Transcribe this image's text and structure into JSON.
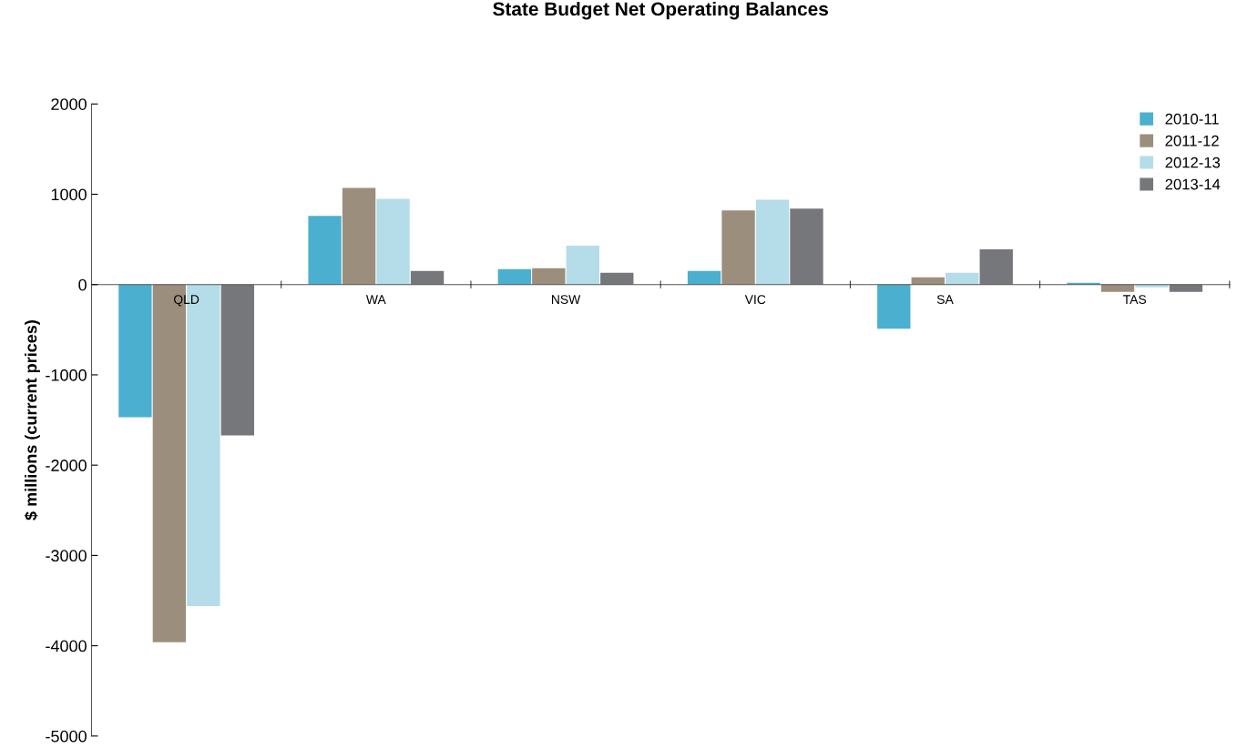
{
  "chart_data": {
    "type": "bar",
    "title": "State Budget Net Operating Balances",
    "ylabel": "$ millions (current prices)",
    "categories": [
      "QLD",
      "WA",
      "NSW",
      "VIC",
      "SA",
      "TAS"
    ],
    "series": [
      {
        "name": "2010-11",
        "color": "#4bafcf",
        "values": [
          -1470,
          760,
          170,
          150,
          -490,
          20
        ]
      },
      {
        "name": "2011-12",
        "color": "#9c8e7c",
        "values": [
          -3960,
          1070,
          180,
          820,
          80,
          -80
        ]
      },
      {
        "name": "2012-13",
        "color": "#b4dce9",
        "values": [
          -3560,
          950,
          430,
          940,
          130,
          -30
        ]
      },
      {
        "name": "2013-14",
        "color": "#76777b",
        "values": [
          -1670,
          150,
          130,
          840,
          390,
          -80
        ]
      }
    ],
    "ylim": [
      -5000,
      2000
    ],
    "yticks": [
      -5000,
      -4000,
      -3000,
      -2000,
      -1000,
      0,
      1000,
      2000
    ],
    "grid": false,
    "legend": "top right"
  }
}
